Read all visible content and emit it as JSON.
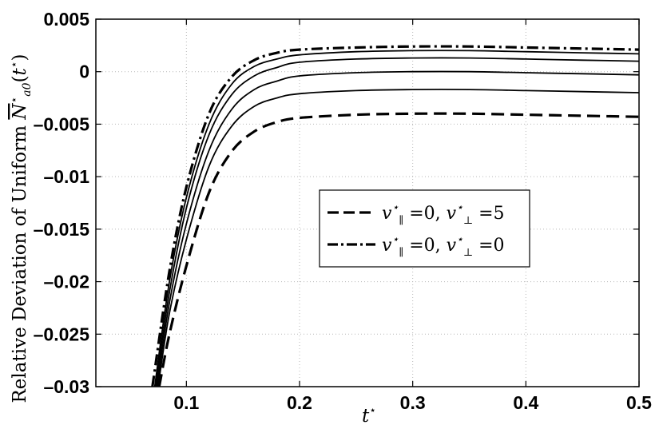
{
  "chart_data": {
    "type": "line",
    "xlabel": "t*",
    "ylabel": "Relative Deviation of Uniform N*a0(t*)",
    "xlim": [
      0.02,
      0.5
    ],
    "ylim": [
      -0.03,
      0.005
    ],
    "xticks": [
      0.1,
      0.2,
      0.3,
      0.4,
      0.5
    ],
    "xtick_labels": [
      "0.1",
      "0.2",
      "0.3",
      "0.4",
      "0.5"
    ],
    "yticks": [
      0.005,
      0,
      -0.005,
      -0.01,
      -0.015,
      -0.02,
      -0.025,
      -0.03
    ],
    "ytick_labels": [
      "0.005",
      "0",
      "-0.005",
      "-0.01",
      "-0.015",
      "-0.02",
      "-0.025",
      "-0.03"
    ],
    "grid": true,
    "legend": {
      "placement": "center-right",
      "entries": [
        {
          "label": "v*∥ = 0, v*⊥ = 5",
          "style": "dashed"
        },
        {
          "label": "v*∥ = 0, v*⊥ = 0",
          "style": "dashdot"
        }
      ]
    },
    "series": [
      {
        "style": "dashdot",
        "x": [
          0.07,
          0.085,
          0.1,
          0.12,
          0.14,
          0.16,
          0.18,
          0.2,
          0.25,
          0.3,
          0.35,
          0.4,
          0.45,
          0.5
        ],
        "y": [
          -0.03,
          -0.019,
          -0.011,
          -0.004,
          -0.0005,
          0.0011,
          0.0018,
          0.0021,
          0.0023,
          0.0024,
          0.0024,
          0.0023,
          0.0022,
          0.0021
        ]
      },
      {
        "style": "solid",
        "x": [
          0.072,
          0.085,
          0.1,
          0.12,
          0.14,
          0.16,
          0.18,
          0.2,
          0.25,
          0.3,
          0.35,
          0.4,
          0.45,
          0.5
        ],
        "y": [
          -0.03,
          -0.02,
          -0.012,
          -0.005,
          -0.0012,
          0.0005,
          0.0012,
          0.0016,
          0.0019,
          0.002,
          0.002,
          0.0019,
          0.0018,
          0.0017
        ]
      },
      {
        "style": "solid",
        "x": [
          0.073,
          0.085,
          0.1,
          0.12,
          0.14,
          0.16,
          0.18,
          0.2,
          0.25,
          0.3,
          0.35,
          0.4,
          0.45,
          0.5
        ],
        "y": [
          -0.03,
          -0.021,
          -0.013,
          -0.006,
          -0.0022,
          -0.0004,
          0.0004,
          0.0009,
          0.0012,
          0.0013,
          0.0013,
          0.0012,
          0.0011,
          0.001
        ]
      },
      {
        "style": "solid",
        "x": [
          0.074,
          0.085,
          0.1,
          0.12,
          0.14,
          0.16,
          0.18,
          0.2,
          0.25,
          0.3,
          0.35,
          0.4,
          0.45,
          0.5
        ],
        "y": [
          -0.03,
          -0.022,
          -0.0145,
          -0.0075,
          -0.0036,
          -0.0017,
          -0.0009,
          -0.0004,
          -0.0001,
          0.0,
          0.0,
          -0.0001,
          -0.0002,
          -0.0003
        ]
      },
      {
        "style": "solid",
        "x": [
          0.075,
          0.085,
          0.1,
          0.12,
          0.14,
          0.16,
          0.18,
          0.2,
          0.25,
          0.3,
          0.35,
          0.4,
          0.45,
          0.5
        ],
        "y": [
          -0.03,
          -0.023,
          -0.016,
          -0.009,
          -0.0052,
          -0.0033,
          -0.0025,
          -0.0021,
          -0.0018,
          -0.0017,
          -0.0017,
          -0.0018,
          -0.0019,
          -0.002
        ]
      },
      {
        "style": "dashed",
        "x": [
          0.076,
          0.085,
          0.1,
          0.12,
          0.14,
          0.16,
          0.18,
          0.2,
          0.25,
          0.3,
          0.35,
          0.4,
          0.45,
          0.5
        ],
        "y": [
          -0.03,
          -0.025,
          -0.0185,
          -0.0115,
          -0.0076,
          -0.0057,
          -0.0048,
          -0.0044,
          -0.0041,
          -0.004,
          -0.004,
          -0.0041,
          -0.0042,
          -0.0043
        ]
      }
    ]
  }
}
